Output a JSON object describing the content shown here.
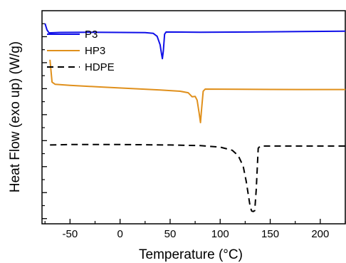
{
  "chart_data": {
    "type": "line",
    "xlabel": "Temperature (°C)",
    "ylabel": "Heat Flow (exo up) (W/g)",
    "xlim": [
      -78,
      225
    ],
    "ylim": [
      0,
      10
    ],
    "x_ticks": [
      -50,
      0,
      50,
      100,
      150,
      200
    ],
    "y_tick_count": 8,
    "y_tick_labels_shown": false,
    "grid": false,
    "legend_position": "top-left",
    "series": [
      {
        "name": "P3",
        "color": "#1010e8",
        "dash": "solid",
        "points": [
          [
            -75,
            9.4
          ],
          [
            -73,
            9.1
          ],
          [
            -71,
            8.96
          ],
          [
            -60,
            8.98
          ],
          [
            -30,
            8.99
          ],
          [
            0,
            8.98
          ],
          [
            25,
            8.97
          ],
          [
            33,
            8.94
          ],
          [
            37,
            8.8
          ],
          [
            40,
            8.4
          ],
          [
            41.5,
            7.95
          ],
          [
            42.3,
            7.75
          ],
          [
            43.2,
            8.1
          ],
          [
            44.5,
            8.9
          ],
          [
            46,
            9.0
          ],
          [
            80,
            8.99
          ],
          [
            130,
            9.0
          ],
          [
            180,
            9.02
          ],
          [
            225,
            9.04
          ]
        ]
      },
      {
        "name": "HP3",
        "color": "#e0901c",
        "dash": "solid",
        "points": [
          [
            -70,
            7.7
          ],
          [
            -68,
            6.65
          ],
          [
            -65,
            6.55
          ],
          [
            -50,
            6.5
          ],
          [
            -20,
            6.42
          ],
          [
            10,
            6.35
          ],
          [
            40,
            6.28
          ],
          [
            60,
            6.22
          ],
          [
            68,
            6.15
          ],
          [
            72,
            5.96
          ],
          [
            75,
            5.98
          ],
          [
            77,
            5.8
          ],
          [
            79,
            5.2
          ],
          [
            80.3,
            4.75
          ],
          [
            81.5,
            5.4
          ],
          [
            83,
            6.22
          ],
          [
            85,
            6.32
          ],
          [
            120,
            6.31
          ],
          [
            180,
            6.3
          ],
          [
            225,
            6.3
          ]
        ]
      },
      {
        "name": "HDPE",
        "color": "#000000",
        "dash": "dashed",
        "points": [
          [
            -70,
            3.7
          ],
          [
            -50,
            3.72
          ],
          [
            0,
            3.72
          ],
          [
            50,
            3.7
          ],
          [
            80,
            3.67
          ],
          [
            100,
            3.6
          ],
          [
            112,
            3.45
          ],
          [
            118,
            3.2
          ],
          [
            123,
            2.7
          ],
          [
            126,
            2.0
          ],
          [
            128,
            1.4
          ],
          [
            130,
            0.8
          ],
          [
            131.5,
            0.6
          ],
          [
            133,
            0.58
          ],
          [
            134.5,
            0.62
          ],
          [
            136,
            1.6
          ],
          [
            138,
            3.55
          ],
          [
            140,
            3.65
          ],
          [
            180,
            3.65
          ],
          [
            225,
            3.65
          ]
        ]
      }
    ]
  }
}
